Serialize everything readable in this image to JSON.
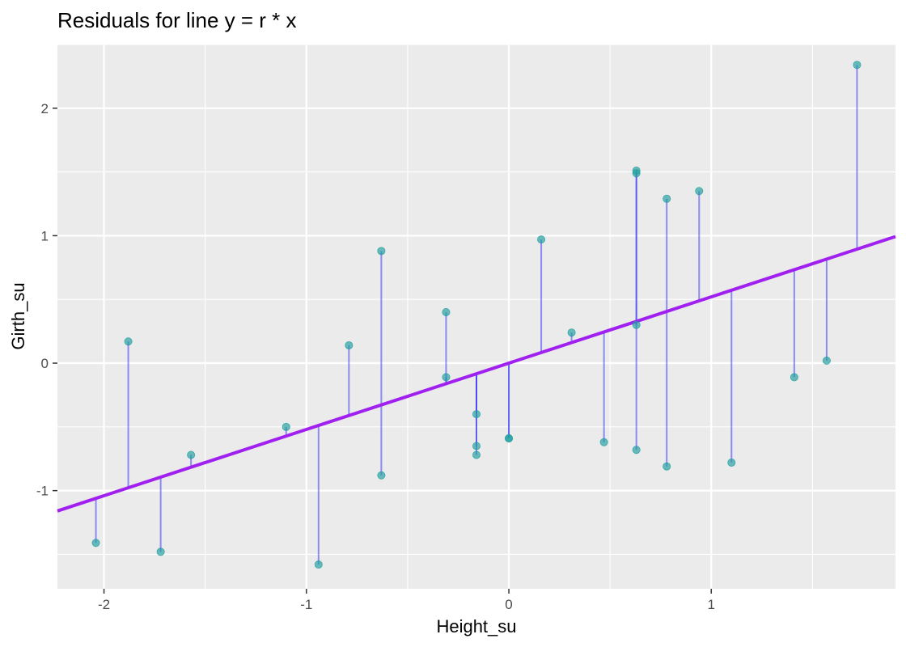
{
  "chart_data": {
    "type": "scatter",
    "title": "Residuals for line y = r * x",
    "xlabel": "Height_su",
    "ylabel": "Girth_su",
    "xlim": [
      -2.23,
      1.91
    ],
    "ylim": [
      -1.77,
      2.5
    ],
    "x_ticks": [
      -2,
      -1,
      0,
      1
    ],
    "x_tick_labels": [
      "-2",
      "-1",
      "0",
      "1"
    ],
    "y_ticks": [
      -1,
      0,
      1,
      2
    ],
    "y_tick_labels": [
      "-1",
      "0",
      "1",
      "2"
    ],
    "grid": true,
    "slope_r": 0.52,
    "points": [
      {
        "x": -2.04,
        "y": -1.41
      },
      {
        "x": -1.88,
        "y": 0.17
      },
      {
        "x": -1.72,
        "y": -1.48
      },
      {
        "x": -1.57,
        "y": -0.72
      },
      {
        "x": -1.1,
        "y": -0.5
      },
      {
        "x": -0.94,
        "y": -1.58
      },
      {
        "x": -0.79,
        "y": 0.14
      },
      {
        "x": -0.63,
        "y": 0.88
      },
      {
        "x": -0.63,
        "y": -0.88
      },
      {
        "x": -0.31,
        "y": 0.4
      },
      {
        "x": -0.31,
        "y": -0.11
      },
      {
        "x": -0.16,
        "y": -0.4
      },
      {
        "x": -0.16,
        "y": -0.65
      },
      {
        "x": -0.16,
        "y": -0.72
      },
      {
        "x": 0.0,
        "y": -0.59
      },
      {
        "x": 0.0,
        "y": -0.59
      },
      {
        "x": 0.16,
        "y": 0.97
      },
      {
        "x": 0.31,
        "y": 0.24
      },
      {
        "x": 0.47,
        "y": -0.62
      },
      {
        "x": 0.63,
        "y": 1.51
      },
      {
        "x": 0.63,
        "y": 1.49
      },
      {
        "x": 0.63,
        "y": 0.3
      },
      {
        "x": 0.63,
        "y": -0.68
      },
      {
        "x": 0.78,
        "y": 1.29
      },
      {
        "x": 0.78,
        "y": -0.81
      },
      {
        "x": 0.94,
        "y": 1.35
      },
      {
        "x": 1.1,
        "y": -0.78
      },
      {
        "x": 1.41,
        "y": -0.11
      },
      {
        "x": 1.57,
        "y": 0.02
      },
      {
        "x": 1.72,
        "y": 2.34
      }
    ],
    "colors": {
      "panel": "#ebebeb",
      "grid": "#ffffff",
      "point": "#1f9e9e",
      "residual": "#3b3bf5",
      "fit_line": "#a020f0"
    }
  }
}
